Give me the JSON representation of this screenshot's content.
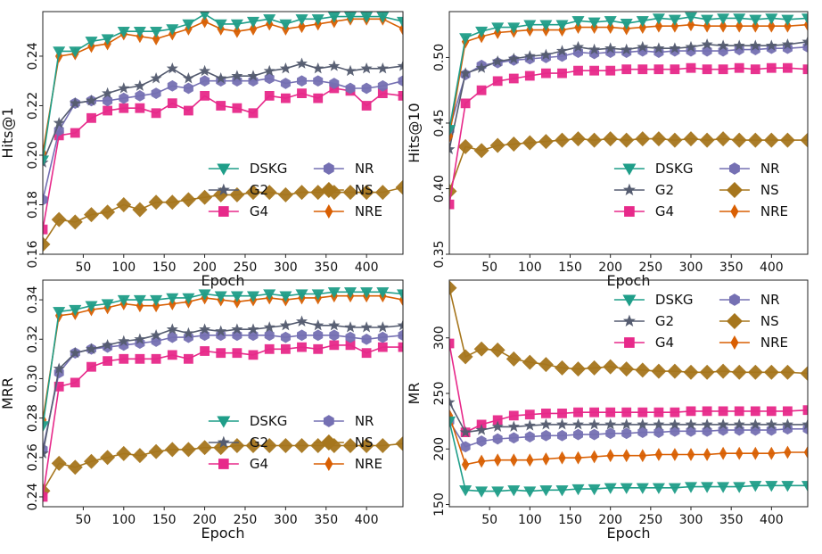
{
  "chart_data": [
    {
      "type": "line",
      "ylabel": "Hits@1",
      "xlabel": "Epoch",
      "xlim": [
        0,
        445
      ],
      "ylim": [
        0.16,
        0.258
      ],
      "xticks": [
        50,
        100,
        150,
        200,
        250,
        300,
        350,
        400
      ],
      "yticks": [
        0.16,
        0.18,
        0.2,
        0.22,
        0.24
      ],
      "ytick_labels": [
        "0.16",
        "0.18",
        "0.20",
        "0.22",
        "0.24"
      ],
      "legend_position": "bottom-right",
      "x": [
        0,
        20,
        40,
        60,
        80,
        100,
        120,
        140,
        160,
        180,
        200,
        220,
        240,
        260,
        280,
        300,
        320,
        340,
        360,
        380,
        400,
        420,
        445
      ],
      "series": [
        {
          "name": "DSKG",
          "values": [
            0.198,
            0.242,
            0.242,
            0.246,
            0.247,
            0.25,
            0.25,
            0.25,
            0.251,
            0.253,
            0.257,
            0.253,
            0.253,
            0.254,
            0.255,
            0.253,
            0.255,
            0.255,
            0.256,
            0.256,
            0.256,
            0.256,
            0.254
          ]
        },
        {
          "name": "G2",
          "values": [
            0.197,
            0.213,
            0.221,
            0.222,
            0.225,
            0.227,
            0.228,
            0.231,
            0.235,
            0.231,
            0.234,
            0.231,
            0.232,
            0.232,
            0.234,
            0.235,
            0.237,
            0.235,
            0.236,
            0.234,
            0.235,
            0.235,
            0.236
          ]
        },
        {
          "name": "G4",
          "values": [
            0.17,
            0.208,
            0.209,
            0.215,
            0.218,
            0.219,
            0.219,
            0.217,
            0.221,
            0.218,
            0.224,
            0.22,
            0.219,
            0.217,
            0.224,
            0.223,
            0.225,
            0.223,
            0.227,
            0.226,
            0.22,
            0.225,
            0.224
          ]
        },
        {
          "name": "NR",
          "values": [
            0.182,
            0.21,
            0.221,
            0.222,
            0.222,
            0.223,
            0.224,
            0.225,
            0.228,
            0.227,
            0.23,
            0.23,
            0.23,
            0.23,
            0.231,
            0.229,
            0.23,
            0.23,
            0.229,
            0.227,
            0.227,
            0.228,
            0.23
          ]
        },
        {
          "name": "NS",
          "values": [
            0.164,
            0.174,
            0.173,
            0.176,
            0.177,
            0.18,
            0.178,
            0.181,
            0.181,
            0.182,
            0.183,
            0.184,
            0.184,
            0.185,
            0.185,
            0.184,
            0.185,
            0.185,
            0.185,
            0.185,
            0.185,
            0.185,
            0.187
          ]
        },
        {
          "name": "NRE",
          "values": [
            0.201,
            0.24,
            0.241,
            0.244,
            0.245,
            0.249,
            0.248,
            0.247,
            0.249,
            0.251,
            0.254,
            0.251,
            0.25,
            0.251,
            0.253,
            0.251,
            0.252,
            0.253,
            0.254,
            0.255,
            0.255,
            0.255,
            0.251
          ]
        }
      ]
    },
    {
      "type": "line",
      "ylabel": "Hits@10",
      "xlabel": "Epoch",
      "xlim": [
        0,
        445
      ],
      "ylim": [
        0.35,
        0.535
      ],
      "xticks": [
        50,
        100,
        150,
        200,
        250,
        300,
        350,
        400
      ],
      "yticks": [
        0.35,
        0.4,
        0.45,
        0.5
      ],
      "ytick_labels": [
        "0.35",
        "0.40",
        "0.45",
        "0.50"
      ],
      "legend_position": "bottom-right",
      "x": [
        0,
        20,
        40,
        60,
        80,
        100,
        120,
        140,
        160,
        180,
        200,
        220,
        240,
        260,
        280,
        300,
        320,
        340,
        360,
        380,
        400,
        420,
        445
      ],
      "series": [
        {
          "name": "DSKG",
          "values": [
            0.445,
            0.515,
            0.52,
            0.523,
            0.523,
            0.525,
            0.525,
            0.525,
            0.528,
            0.527,
            0.528,
            0.526,
            0.528,
            0.53,
            0.529,
            0.531,
            0.529,
            0.53,
            0.53,
            0.529,
            0.53,
            0.529,
            0.53
          ]
        },
        {
          "name": "G2",
          "values": [
            0.43,
            0.488,
            0.492,
            0.497,
            0.499,
            0.501,
            0.502,
            0.505,
            0.508,
            0.506,
            0.507,
            0.506,
            0.508,
            0.507,
            0.507,
            0.508,
            0.51,
            0.509,
            0.509,
            0.509,
            0.509,
            0.51,
            0.512
          ]
        },
        {
          "name": "G4",
          "values": [
            0.388,
            0.465,
            0.475,
            0.482,
            0.484,
            0.486,
            0.488,
            0.488,
            0.49,
            0.49,
            0.49,
            0.491,
            0.491,
            0.491,
            0.491,
            0.492,
            0.491,
            0.491,
            0.492,
            0.491,
            0.492,
            0.492,
            0.491
          ]
        },
        {
          "name": "NR",
          "values": [
            0.445,
            0.487,
            0.494,
            0.496,
            0.498,
            0.499,
            0.5,
            0.501,
            0.504,
            0.503,
            0.504,
            0.504,
            0.505,
            0.504,
            0.505,
            0.505,
            0.505,
            0.505,
            0.506,
            0.506,
            0.507,
            0.507,
            0.508
          ]
        },
        {
          "name": "NS",
          "values": [
            0.398,
            0.432,
            0.429,
            0.433,
            0.434,
            0.435,
            0.436,
            0.437,
            0.438,
            0.437,
            0.438,
            0.437,
            0.438,
            0.438,
            0.437,
            0.438,
            0.437,
            0.438,
            0.437,
            0.437,
            0.437,
            0.437,
            0.437
          ]
        },
        {
          "name": "NRE",
          "values": [
            0.44,
            0.512,
            0.516,
            0.519,
            0.52,
            0.521,
            0.521,
            0.521,
            0.523,
            0.523,
            0.523,
            0.522,
            0.523,
            0.524,
            0.524,
            0.525,
            0.524,
            0.524,
            0.524,
            0.524,
            0.524,
            0.524,
            0.525
          ]
        }
      ]
    },
    {
      "type": "line",
      "ylabel": "MRR",
      "xlabel": "Epoch",
      "xlim": [
        0,
        445
      ],
      "ylim": [
        0.235,
        0.35
      ],
      "xticks": [
        50,
        100,
        150,
        200,
        250,
        300,
        350,
        400
      ],
      "yticks": [
        0.24,
        0.26,
        0.28,
        0.3,
        0.32,
        0.34
      ],
      "ytick_labels": [
        "0.24",
        "0.26",
        "0.28",
        "0.30",
        "0.32",
        "0.34"
      ],
      "legend_position": "bottom-right",
      "x": [
        0,
        20,
        40,
        60,
        80,
        100,
        120,
        140,
        160,
        180,
        200,
        220,
        240,
        260,
        280,
        300,
        320,
        340,
        360,
        380,
        400,
        420,
        445
      ],
      "series": [
        {
          "name": "DSKG",
          "values": [
            0.276,
            0.334,
            0.335,
            0.337,
            0.338,
            0.34,
            0.34,
            0.34,
            0.341,
            0.341,
            0.343,
            0.342,
            0.342,
            0.342,
            0.343,
            0.342,
            0.343,
            0.343,
            0.344,
            0.344,
            0.344,
            0.344,
            0.343
          ]
        },
        {
          "name": "G2",
          "values": [
            0.262,
            0.305,
            0.313,
            0.315,
            0.317,
            0.319,
            0.32,
            0.322,
            0.325,
            0.323,
            0.325,
            0.324,
            0.325,
            0.325,
            0.326,
            0.327,
            0.329,
            0.327,
            0.327,
            0.326,
            0.326,
            0.326,
            0.327
          ]
        },
        {
          "name": "G4",
          "values": [
            0.24,
            0.296,
            0.298,
            0.306,
            0.309,
            0.31,
            0.31,
            0.31,
            0.312,
            0.31,
            0.314,
            0.313,
            0.313,
            0.312,
            0.315,
            0.315,
            0.316,
            0.315,
            0.317,
            0.317,
            0.313,
            0.316,
            0.316
          ]
        },
        {
          "name": "NR",
          "values": [
            0.264,
            0.303,
            0.313,
            0.315,
            0.316,
            0.317,
            0.318,
            0.319,
            0.321,
            0.321,
            0.322,
            0.322,
            0.322,
            0.322,
            0.322,
            0.321,
            0.322,
            0.322,
            0.322,
            0.321,
            0.32,
            0.321,
            0.322
          ]
        },
        {
          "name": "NS",
          "values": [
            0.243,
            0.257,
            0.255,
            0.258,
            0.26,
            0.262,
            0.261,
            0.263,
            0.264,
            0.264,
            0.265,
            0.265,
            0.266,
            0.266,
            0.266,
            0.266,
            0.266,
            0.266,
            0.266,
            0.266,
            0.266,
            0.266,
            0.267
          ]
        },
        {
          "name": "NRE",
          "values": [
            0.279,
            0.332,
            0.333,
            0.335,
            0.336,
            0.338,
            0.337,
            0.337,
            0.338,
            0.339,
            0.341,
            0.34,
            0.339,
            0.34,
            0.341,
            0.34,
            0.341,
            0.341,
            0.342,
            0.342,
            0.342,
            0.342,
            0.34
          ]
        }
      ]
    },
    {
      "type": "line",
      "ylabel": "MR",
      "xlabel": "Epoch",
      "xlim": [
        0,
        445
      ],
      "ylim": [
        148,
        352
      ],
      "xticks": [
        50,
        100,
        150,
        200,
        250,
        300,
        350,
        400
      ],
      "yticks": [
        150,
        200,
        250,
        300
      ],
      "ytick_labels": [
        "150",
        "200",
        "250",
        "300"
      ],
      "legend_position": "top-right",
      "x": [
        0,
        20,
        40,
        60,
        80,
        100,
        120,
        140,
        160,
        180,
        200,
        220,
        240,
        260,
        280,
        300,
        320,
        340,
        360,
        380,
        400,
        420,
        445
      ],
      "series": [
        {
          "name": "DSKG",
          "values": [
            225,
            163,
            162,
            162,
            163,
            162,
            163,
            163,
            164,
            164,
            165,
            165,
            165,
            165,
            165,
            166,
            166,
            166,
            166,
            167,
            167,
            167,
            167
          ]
        },
        {
          "name": "G2",
          "values": [
            242,
            215,
            217,
            220,
            220,
            221,
            222,
            222,
            222,
            222,
            222,
            222,
            222,
            222,
            222,
            222,
            222,
            222,
            222,
            222,
            222,
            222,
            222
          ]
        },
        {
          "name": "G4",
          "values": [
            295,
            215,
            222,
            226,
            230,
            231,
            232,
            232,
            233,
            233,
            233,
            233,
            233,
            233,
            233,
            234,
            234,
            234,
            234,
            234,
            234,
            234,
            235
          ]
        },
        {
          "name": "NR",
          "values": [
            225,
            202,
            207,
            209,
            210,
            211,
            212,
            212,
            213,
            213,
            214,
            214,
            215,
            215,
            216,
            216,
            216,
            217,
            217,
            217,
            217,
            218,
            218
          ]
        },
        {
          "name": "NS",
          "values": [
            345,
            283,
            290,
            289,
            281,
            278,
            276,
            273,
            272,
            273,
            274,
            272,
            271,
            270,
            270,
            269,
            269,
            270,
            269,
            269,
            269,
            269,
            268
          ]
        },
        {
          "name": "NRE",
          "values": [
            230,
            186,
            189,
            190,
            190,
            190,
            191,
            192,
            192,
            193,
            194,
            194,
            194,
            195,
            195,
            195,
            195,
            196,
            196,
            196,
            196,
            197,
            197
          ]
        }
      ]
    }
  ],
  "legend_style": {
    "DSKG": {
      "color": "#1f9e89",
      "marker": "triangle-down"
    },
    "G2": {
      "color": "#555c70",
      "marker": "star"
    },
    "G4": {
      "color": "#e7298a",
      "marker": "square"
    },
    "NR": {
      "color": "#7570b3",
      "marker": "hexagon"
    },
    "NS": {
      "color": "#a6761d",
      "marker": "diamond"
    },
    "NRE": {
      "color": "#d95f02",
      "marker": "thin-diamond"
    }
  }
}
